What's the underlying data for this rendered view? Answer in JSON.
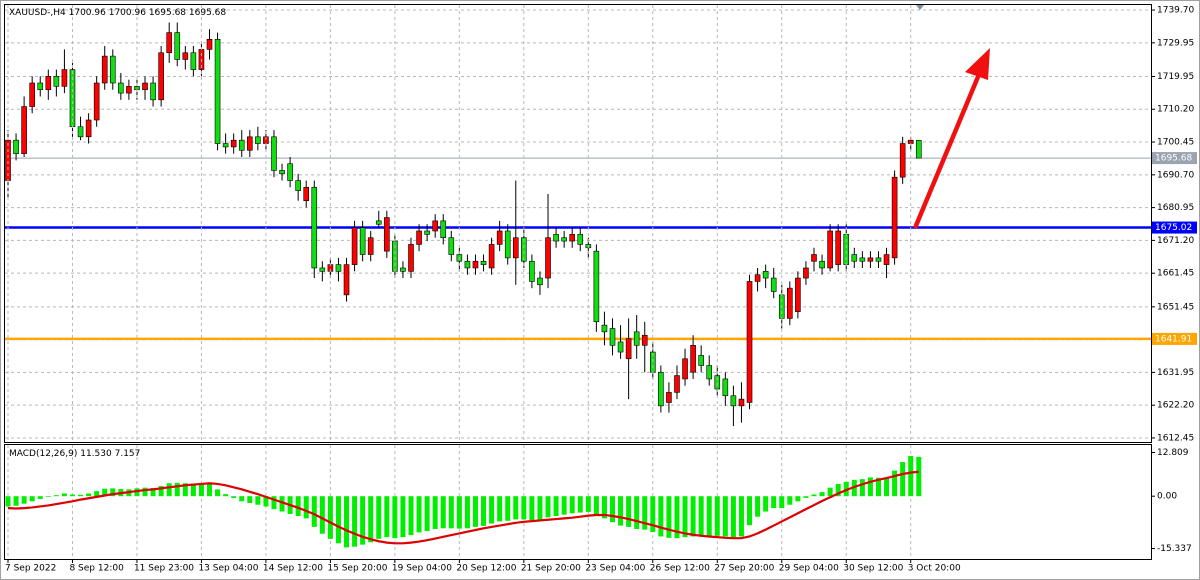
{
  "chart_data": [
    {
      "type": "candlestick",
      "title": "XAUUSD-,H4",
      "header_values": [
        1700.96,
        1700.96,
        1695.68,
        1695.68
      ],
      "up_color": "#ff0000",
      "down_color": "#11dd11",
      "ylim": [
        1611.25,
        1741.2
      ],
      "yticks": [
        {
          "value": 1739.7,
          "label": "1739.70"
        },
        1729.95,
        1719.95,
        {
          "value": 1710.2,
          "label": "1710.20"
        },
        1700.45,
        {
          "value": 1690.7,
          "label": "1690.70"
        },
        1680.95,
        {
          "value": 1671.2,
          "label": "1671.20"
        },
        1661.45,
        1651.45,
        {
          "value": 1641.7,
          "label": "1641.70"
        },
        1631.95,
        {
          "value": 1622.2,
          "label": "1622.20"
        },
        1612.45
      ],
      "grid": true,
      "levels": [
        {
          "value": 1695.68,
          "color": "#9aa4b0"
        },
        {
          "value": 1675.02,
          "color": "#0000ff"
        },
        {
          "value": 1641.91,
          "color": "#ffa500"
        }
      ],
      "candles": [
        [
          1689,
          1704,
          1684,
          1701
        ],
        [
          1701,
          1703,
          1695,
          1697
        ],
        [
          1697,
          1714,
          1696,
          1711
        ],
        [
          1711,
          1720,
          1709,
          1718
        ],
        [
          1718,
          1720,
          1714,
          1716
        ],
        [
          1716,
          1722,
          1713,
          1720
        ],
        [
          1720,
          1722,
          1714,
          1717
        ],
        [
          1717,
          1728,
          1715,
          1722
        ],
        [
          1722,
          1724,
          1702,
          1705
        ],
        [
          1705,
          1708,
          1701,
          1702
        ],
        [
          1702,
          1709,
          1700,
          1707
        ],
        [
          1707,
          1720,
          1705,
          1718
        ],
        [
          1718,
          1729,
          1716,
          1726
        ],
        [
          1726,
          1728,
          1716,
          1718
        ],
        [
          1718,
          1721,
          1713,
          1715
        ],
        [
          1715,
          1719,
          1713,
          1717
        ],
        [
          1717,
          1719,
          1713,
          1716
        ],
        [
          1716,
          1720,
          1713,
          1718
        ],
        [
          1718,
          1720,
          1711,
          1713
        ],
        [
          1713,
          1729,
          1711,
          1727
        ],
        [
          1727,
          1736,
          1724,
          1733
        ],
        [
          1733,
          1736,
          1723,
          1725
        ],
        [
          1725,
          1729,
          1722,
          1727
        ],
        [
          1727,
          1729,
          1720,
          1722
        ],
        [
          1722,
          1730,
          1720,
          1728
        ],
        [
          1728,
          1734,
          1725,
          1731
        ],
        [
          1731,
          1733,
          1698,
          1700
        ],
        [
          1700,
          1703,
          1697,
          1699
        ],
        [
          1699,
          1703,
          1697,
          1701
        ],
        [
          1701,
          1704,
          1696,
          1698
        ],
        [
          1698,
          1704,
          1696,
          1702
        ],
        [
          1702,
          1705,
          1698,
          1700
        ],
        [
          1700,
          1704,
          1698,
          1702
        ],
        [
          1702,
          1704,
          1690,
          1692
        ],
        [
          1692,
          1694,
          1689,
          1691
        ],
        [
          1694,
          1696,
          1687,
          1689
        ],
        [
          1689,
          1691,
          1683,
          1686
        ],
        [
          1683,
          1689,
          1681,
          1687
        ],
        [
          1687,
          1689,
          1660,
          1663
        ],
        [
          1663,
          1665,
          1659,
          1662
        ],
        [
          1662,
          1666,
          1660,
          1664
        ],
        [
          1664,
          1666,
          1659,
          1662
        ],
        [
          1655,
          1666,
          1653,
          1664
        ],
        [
          1664,
          1677,
          1662,
          1675
        ],
        [
          1675,
          1677,
          1665,
          1667
        ],
        [
          1667,
          1674,
          1665,
          1672
        ],
        [
          1677,
          1680,
          1675,
          1676
        ],
        [
          1668,
          1680,
          1666,
          1678
        ],
        [
          1671,
          1673,
          1660,
          1662
        ],
        [
          1663,
          1665,
          1660,
          1662
        ],
        [
          1662,
          1672,
          1660,
          1670
        ],
        [
          1670,
          1676,
          1668,
          1674
        ],
        [
          1674,
          1676,
          1671,
          1673
        ],
        [
          1674,
          1679,
          1672,
          1677
        ],
        [
          1677,
          1679,
          1670,
          1672
        ],
        [
          1672,
          1674,
          1665,
          1667
        ],
        [
          1667,
          1669,
          1662,
          1665
        ],
        [
          1665,
          1667,
          1661,
          1663
        ],
        [
          1663,
          1667,
          1661,
          1665
        ],
        [
          1665,
          1667,
          1662,
          1664
        ],
        [
          1663,
          1672,
          1661,
          1670
        ],
        [
          1670,
          1677,
          1668,
          1674
        ],
        [
          1674,
          1676,
          1664,
          1666
        ],
        [
          1666,
          1689,
          1658,
          1672
        ],
        [
          1672,
          1675,
          1663,
          1665
        ],
        [
          1665,
          1667,
          1657,
          1659
        ],
        [
          1660,
          1662,
          1655,
          1658
        ],
        [
          1660,
          1685,
          1657,
          1672
        ],
        [
          1673,
          1675,
          1669,
          1671
        ],
        [
          1672,
          1674,
          1669,
          1671
        ],
        [
          1671,
          1675,
          1669,
          1673
        ],
        [
          1673,
          1675,
          1668,
          1670
        ],
        [
          1670,
          1672,
          1666,
          1669
        ],
        [
          1668,
          1670,
          1644,
          1647
        ],
        [
          1646,
          1650,
          1640,
          1644
        ],
        [
          1645,
          1648,
          1637,
          1640
        ],
        [
          1641,
          1646,
          1636,
          1638
        ],
        [
          1636,
          1648,
          1624,
          1642
        ],
        [
          1644,
          1649,
          1636,
          1640
        ],
        [
          1640,
          1647,
          1632,
          1643
        ],
        [
          1638,
          1641,
          1630,
          1632
        ],
        [
          1632,
          1634,
          1620,
          1622
        ],
        [
          1623,
          1629,
          1620,
          1626
        ],
        [
          1626,
          1634,
          1624,
          1631
        ],
        [
          1630,
          1639,
          1628,
          1636
        ],
        [
          1632,
          1643,
          1630,
          1640
        ],
        [
          1637,
          1640,
          1632,
          1634
        ],
        [
          1634,
          1637,
          1628,
          1630
        ],
        [
          1631,
          1634,
          1625,
          1627
        ],
        [
          1630,
          1632,
          1622,
          1625
        ],
        [
          1625,
          1628,
          1616,
          1622
        ],
        [
          1622,
          1629,
          1617,
          1624
        ],
        [
          1623,
          1661,
          1621,
          1659
        ],
        [
          1659,
          1663,
          1656,
          1661
        ],
        [
          1662,
          1664,
          1657,
          1660
        ],
        [
          1660,
          1663,
          1654,
          1656
        ],
        [
          1655,
          1658,
          1645,
          1648
        ],
        [
          1648,
          1659,
          1646,
          1657
        ],
        [
          1650,
          1662,
          1648,
          1660
        ],
        [
          1660,
          1665,
          1658,
          1663
        ],
        [
          1665,
          1669,
          1662,
          1667
        ],
        [
          1665,
          1667,
          1661,
          1663
        ],
        [
          1663,
          1676,
          1662,
          1674
        ],
        [
          1664,
          1676,
          1662,
          1674
        ],
        [
          1673,
          1676,
          1662,
          1664
        ],
        [
          1667,
          1669,
          1663,
          1665
        ],
        [
          1666,
          1668,
          1663,
          1665
        ],
        [
          1665,
          1668,
          1663,
          1666
        ],
        [
          1666,
          1668,
          1663,
          1665
        ],
        [
          1664,
          1669,
          1660,
          1667
        ],
        [
          1666,
          1692,
          1664,
          1690
        ],
        [
          1690,
          1702,
          1688,
          1700
        ],
        [
          1700,
          1702,
          1698,
          1701
        ],
        [
          1700.96,
          1700.96,
          1695.68,
          1695.68
        ]
      ]
    },
    {
      "type": "macd",
      "title": "MACD(12,26,9)",
      "header_values": [
        {
          "value": 11.53,
          "label": "11.530"
        },
        7.157
      ],
      "ylim": [
        -18.4,
        15
      ],
      "yticks": [
        12.809,
        {
          "value": 0,
          "label": "0.00"
        },
        -15.337
      ],
      "categories": [
        "7 Sep 2022",
        null,
        null,
        null,
        null,
        null,
        null,
        null,
        "8 Sep 12:00",
        null,
        null,
        null,
        null,
        null,
        null,
        null,
        "11 Sep 23:00",
        null,
        null,
        null,
        null,
        null,
        null,
        null,
        "13 Sep 04:00",
        null,
        null,
        null,
        null,
        null,
        null,
        null,
        "14 Sep 12:00",
        null,
        null,
        null,
        null,
        null,
        null,
        null,
        "15 Sep 20:00",
        null,
        null,
        null,
        null,
        null,
        null,
        null,
        "19 Sep 04:00",
        null,
        null,
        null,
        null,
        null,
        null,
        null,
        "20 Sep 12:00",
        null,
        null,
        null,
        null,
        null,
        null,
        null,
        "21 Sep 20:00",
        null,
        null,
        null,
        null,
        null,
        null,
        null,
        "23 Sep 04:00",
        null,
        null,
        null,
        null,
        null,
        null,
        null,
        "26 Sep 12:00",
        null,
        null,
        null,
        null,
        null,
        null,
        null,
        "27 Sep 20:00",
        null,
        null,
        null,
        null,
        null,
        null,
        null,
        "29 Sep 04:00",
        null,
        null,
        null,
        null,
        null,
        null,
        null,
        "30 Sep 12:00",
        null,
        null,
        null,
        null,
        null,
        null,
        null,
        "3 Oct 20:00",
        null
      ],
      "series": [
        {
          "type": "bar",
          "color": "#00ee00",
          "values": [
            -3.0,
            -2.8,
            -2.2,
            -1.5,
            -0.8,
            -0.2,
            0.3,
            0.8,
            0.5,
            0.4,
            0.8,
            1.5,
            2.2,
            2.3,
            2.1,
            2.0,
            2.3,
            2.5,
            2.4,
            3.0,
            3.8,
            3.9,
            3.8,
            3.6,
            3.8,
            4.0,
            2.0,
            0.6,
            -0.5,
            -1.5,
            -2.0,
            -2.5,
            -3.0,
            -3.8,
            -4.5,
            -5.2,
            -5.8,
            -6.5,
            -9.0,
            -11.0,
            -12.5,
            -13.8,
            -15.0,
            -14.8,
            -14.2,
            -13.5,
            -12.5,
            -12.0,
            -12.3,
            -12.0,
            -11.4,
            -10.6,
            -10.2,
            -9.6,
            -9.4,
            -9.4,
            -9.5,
            -9.4,
            -9.0,
            -8.7,
            -8.0,
            -7.4,
            -7.2,
            -6.8,
            -6.8,
            -7.0,
            -7.2,
            -6.2,
            -5.8,
            -5.4,
            -5.0,
            -4.8,
            -4.6,
            -5.6,
            -6.5,
            -7.6,
            -8.6,
            -9.0,
            -9.6,
            -9.8,
            -10.5,
            -11.8,
            -12.2,
            -12.3,
            -12.0,
            -11.8,
            -11.8,
            -11.6,
            -11.6,
            -11.8,
            -12.0,
            -11.8,
            -8.5,
            -6.0,
            -4.5,
            -3.5,
            -3.5,
            -2.5,
            -1.5,
            -0.5,
            0.5,
            1.2,
            2.5,
            3.6,
            4.2,
            4.8,
            5.0,
            5.5,
            5.4,
            5.5,
            7.5,
            10.0,
            11.8,
            11.53
          ]
        },
        {
          "type": "line",
          "color": "#dd0000",
          "values": [
            -3.5,
            -3.6,
            -3.5,
            -3.3,
            -3.0,
            -2.7,
            -2.3,
            -1.9,
            -1.5,
            -1.0,
            -0.6,
            -0.2,
            0.2,
            0.6,
            0.9,
            1.2,
            1.5,
            1.8,
            2.0,
            2.3,
            2.6,
            2.9,
            3.2,
            3.4,
            3.6,
            3.8,
            3.6,
            3.2,
            2.6,
            2.0,
            1.3,
            0.6,
            -0.2,
            -1.0,
            -1.8,
            -2.6,
            -3.4,
            -4.3,
            -5.3,
            -6.5,
            -7.7,
            -8.9,
            -10.0,
            -11.0,
            -11.9,
            -12.6,
            -13.2,
            -13.6,
            -13.8,
            -13.8,
            -13.6,
            -13.3,
            -12.9,
            -12.4,
            -11.9,
            -11.4,
            -10.9,
            -10.4,
            -9.9,
            -9.4,
            -9.0,
            -8.6,
            -8.2,
            -7.8,
            -7.5,
            -7.3,
            -7.1,
            -6.9,
            -6.7,
            -6.5,
            -6.3,
            -6.0,
            -5.7,
            -5.5,
            -5.5,
            -5.8,
            -6.2,
            -6.7,
            -7.3,
            -7.9,
            -8.5,
            -9.2,
            -9.8,
            -10.4,
            -10.9,
            -11.3,
            -11.6,
            -11.8,
            -12.0,
            -12.2,
            -12.3,
            -12.3,
            -11.8,
            -10.9,
            -9.8,
            -8.6,
            -7.4,
            -6.2,
            -5.0,
            -3.8,
            -2.6,
            -1.4,
            -0.3,
            0.8,
            1.8,
            2.7,
            3.5,
            4.2,
            4.8,
            5.3,
            5.9,
            6.5,
            6.9,
            7.157
          ]
        }
      ]
    }
  ]
}
